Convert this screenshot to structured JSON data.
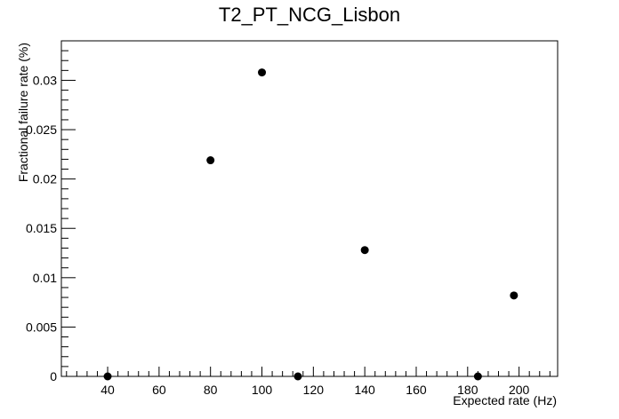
{
  "chart_data": {
    "type": "scatter",
    "title": "T2_PT_NCG_Lisbon",
    "xlabel": "Expected rate (Hz)",
    "ylabel": "Fractional failure rate (%)",
    "xlim": [
      22,
      215
    ],
    "ylim": [
      0,
      0.034
    ],
    "x_ticks": [
      40,
      60,
      80,
      100,
      120,
      140,
      160,
      180,
      200
    ],
    "x_tick_labels": [
      "40",
      "60",
      "80",
      "100",
      "120",
      "140",
      "160",
      "180",
      "200"
    ],
    "y_ticks": [
      0,
      0.005,
      0.01,
      0.015,
      0.02,
      0.025,
      0.03
    ],
    "y_tick_labels": [
      "0",
      "0.005",
      "0.01",
      "0.015",
      "0.02",
      "0.025",
      "0.03"
    ],
    "grid": false,
    "legend": false,
    "marker_color": "#000000",
    "points": [
      {
        "x": 40,
        "y": 0
      },
      {
        "x": 80,
        "y": 0.0219
      },
      {
        "x": 100,
        "y": 0.0308
      },
      {
        "x": 114,
        "y": 0
      },
      {
        "x": 140,
        "y": 0.0128
      },
      {
        "x": 184,
        "y": 0
      },
      {
        "x": 198,
        "y": 0.0082
      }
    ]
  }
}
